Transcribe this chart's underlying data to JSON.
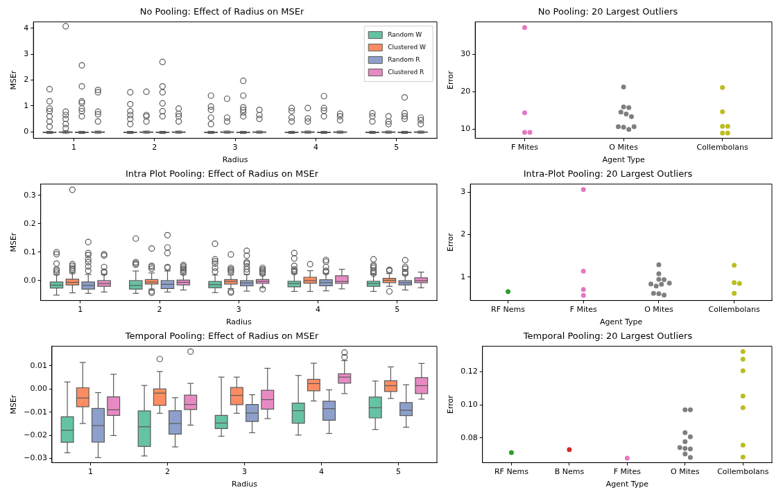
{
  "chart_data": [
    {
      "type": "box",
      "title": "No Pooling: Effect of Radius on MSEr",
      "xlabel": "Radius",
      "ylabel": "MSEr",
      "categories": [
        "1",
        "2",
        "3",
        "4",
        "5"
      ],
      "ylim": [
        -0.25,
        4.25
      ],
      "yticks": [
        0,
        1,
        2,
        3,
        4
      ],
      "legend": "top right",
      "series": [
        {
          "name": "Random W",
          "color": "#66c2a5",
          "boxes": [
            {
              "low": -0.06,
              "q1": -0.03,
              "median": -0.02,
              "q3": -0.01,
              "high": 0.02,
              "outliers": [
                1.65,
                1.18,
                0.9,
                0.8,
                0.6,
                0.4,
                0.2
              ]
            },
            {
              "low": -0.06,
              "q1": -0.03,
              "median": -0.02,
              "q3": -0.01,
              "high": 0.02,
              "outliers": [
                1.53,
                1.07,
                0.8,
                0.65,
                0.5,
                0.3
              ]
            },
            {
              "low": -0.06,
              "q1": -0.03,
              "median": -0.02,
              "q3": -0.01,
              "high": 0.02,
              "outliers": [
                1.4,
                0.98,
                0.85,
                0.55,
                0.3
              ]
            },
            {
              "low": -0.06,
              "q1": -0.03,
              "median": -0.02,
              "q3": -0.01,
              "high": 0.02,
              "outliers": [
                0.92,
                0.8,
                0.55,
                0.4
              ]
            },
            {
              "low": -0.06,
              "q1": -0.03,
              "median": -0.02,
              "q3": -0.01,
              "high": 0.02,
              "outliers": [
                0.72,
                0.6,
                0.4
              ]
            }
          ]
        },
        {
          "name": "Clustered W",
          "color": "#fc8d62",
          "boxes": [
            {
              "low": -0.05,
              "q1": -0.02,
              "median": -0.01,
              "q3": 0.0,
              "high": 0.03,
              "outliers": [
                4.08,
                0.78,
                0.65,
                0.5,
                0.3,
                0.15
              ]
            },
            {
              "low": -0.05,
              "q1": -0.02,
              "median": -0.01,
              "q3": 0.0,
              "high": 0.03,
              "outliers": [
                1.55,
                0.65,
                0.6,
                0.4
              ]
            },
            {
              "low": -0.05,
              "q1": -0.02,
              "median": -0.01,
              "q3": 0.0,
              "high": 0.03,
              "outliers": [
                1.28,
                0.55,
                0.4
              ]
            },
            {
              "low": -0.05,
              "q1": -0.02,
              "median": -0.01,
              "q3": 0.0,
              "high": 0.03,
              "outliers": [
                0.92,
                0.52,
                0.4
              ]
            },
            {
              "low": -0.05,
              "q1": -0.02,
              "median": -0.01,
              "q3": 0.0,
              "high": 0.03,
              "outliers": [
                0.6,
                0.4,
                0.3
              ]
            }
          ]
        },
        {
          "name": "Random R",
          "color": "#8da0cb",
          "boxes": [
            {
              "low": -0.06,
              "q1": -0.03,
              "median": -0.02,
              "q3": -0.01,
              "high": 0.02,
              "outliers": [
                2.57,
                1.76,
                1.18,
                1.12,
                0.9,
                0.8,
                0.6
              ]
            },
            {
              "low": -0.06,
              "q1": -0.03,
              "median": -0.02,
              "q3": -0.01,
              "high": 0.02,
              "outliers": [
                2.7,
                1.76,
                1.53,
                1.1,
                0.8,
                0.6
              ]
            },
            {
              "low": -0.06,
              "q1": -0.03,
              "median": -0.02,
              "q3": -0.01,
              "high": 0.02,
              "outliers": [
                1.97,
                1.4,
                0.95,
                0.85,
                0.75,
                0.6
              ]
            },
            {
              "low": -0.06,
              "q1": -0.03,
              "median": -0.02,
              "q3": -0.01,
              "high": 0.02,
              "outliers": [
                1.38,
                0.92,
                0.82,
                0.6
              ]
            },
            {
              "low": -0.06,
              "q1": -0.03,
              "median": -0.02,
              "q3": -0.01,
              "high": 0.02,
              "outliers": [
                1.33,
                0.72,
                0.6,
                0.5
              ]
            }
          ]
        },
        {
          "name": "Clustered R",
          "color": "#e78ac3",
          "boxes": [
            {
              "low": -0.05,
              "q1": -0.02,
              "median": -0.01,
              "q3": 0.0,
              "high": 0.03,
              "outliers": [
                1.62,
                1.53,
                0.78,
                0.68,
                0.4
              ]
            },
            {
              "low": -0.05,
              "q1": -0.02,
              "median": -0.01,
              "q3": 0.0,
              "high": 0.03,
              "outliers": [
                0.9,
                0.7,
                0.6,
                0.4
              ]
            },
            {
              "low": -0.05,
              "q1": -0.02,
              "median": -0.01,
              "q3": 0.0,
              "high": 0.03,
              "outliers": [
                0.85,
                0.65,
                0.5
              ]
            },
            {
              "low": -0.05,
              "q1": -0.02,
              "median": -0.01,
              "q3": 0.0,
              "high": 0.03,
              "outliers": [
                0.7,
                0.6,
                0.45
              ]
            },
            {
              "low": -0.05,
              "q1": -0.02,
              "median": -0.01,
              "q3": 0.0,
              "high": 0.03,
              "outliers": [
                0.55,
                0.45,
                0.3
              ]
            }
          ]
        }
      ]
    },
    {
      "type": "scatter",
      "title": "No Pooling: 20 Largest Outliers",
      "xlabel": "Agent Type",
      "ylabel": "Error",
      "categories": [
        "F Mites",
        "O Mites",
        "Collembolans"
      ],
      "ylim": [
        7.5,
        38.6
      ],
      "yticks": [
        10,
        20,
        30
      ],
      "marker": "circle",
      "series": [
        {
          "color": "#e377c2",
          "x": [
            "F Mites",
            "F Mites",
            "F Mites",
            "F Mites"
          ],
          "values": [
            37.1,
            14.3,
            9.1,
            9.1
          ]
        },
        {
          "color": "#7f7f7f",
          "x": [
            "O Mites",
            "O Mites",
            "O Mites",
            "O Mites",
            "O Mites",
            "O Mites",
            "O Mites",
            "O Mites",
            "O Mites",
            "O Mites"
          ],
          "values": [
            21.2,
            15.9,
            15.7,
            14.5,
            14.0,
            13.3,
            10.5,
            9.9,
            10.6,
            10.6
          ]
        },
        {
          "color": "#bcbd22",
          "x": [
            "Collembolans",
            "Collembolans",
            "Collembolans",
            "Collembolans",
            "Collembolans",
            "Collembolans"
          ],
          "values": [
            21.1,
            14.6,
            10.7,
            10.7,
            8.9,
            8.9
          ]
        }
      ]
    },
    {
      "type": "box",
      "title": "Intra Plot Pooling: Effect of Radius on MSEr",
      "xlabel": "Radius",
      "ylabel": "MSEr",
      "categories": [
        "1",
        "2",
        "3",
        "4",
        "5"
      ],
      "ylim": [
        -0.07,
        0.34
      ],
      "yticks": [
        {
          "value": 0,
          "label": "0.0"
        },
        {
          "value": 0.1,
          "label": "0.1"
        },
        {
          "value": 0.2,
          "label": "0.2"
        },
        {
          "value": 0.3,
          "label": "0.3"
        }
      ],
      "series": [
        {
          "color": "#66c2a5",
          "boxes": [
            {
              "low": -0.051,
              "q1": -0.026,
              "median": -0.016,
              "q3": -0.005,
              "high": 0.021,
              "outliers": [
                0.1,
                0.093,
                0.06,
                0.04,
                0.035,
                0.028
              ]
            },
            {
              "low": -0.045,
              "q1": -0.03,
              "median": -0.017,
              "q3": 0.0,
              "high": 0.034,
              "outliers": [
                0.148,
                0.065,
                0.06,
                0.056
              ]
            },
            {
              "low": -0.042,
              "q1": -0.025,
              "median": -0.014,
              "q3": -0.003,
              "high": 0.02,
              "outliers": [
                0.13,
                0.075,
                0.068,
                0.06,
                0.045,
                0.032
              ]
            },
            {
              "low": -0.038,
              "q1": -0.022,
              "median": -0.01,
              "q3": -0.002,
              "high": 0.025,
              "outliers": [
                0.097,
                0.078,
                0.052,
                0.04,
                0.035,
                0.03
              ]
            },
            {
              "low": -0.038,
              "q1": -0.02,
              "median": -0.01,
              "q3": -0.002,
              "high": 0.022,
              "outliers": [
                0.075,
                0.055,
                0.05,
                0.045,
                0.035,
                0.03,
                0.025
              ]
            }
          ]
        },
        {
          "color": "#fc8d62",
          "boxes": [
            {
              "low": -0.043,
              "q1": -0.015,
              "median": -0.006,
              "q3": 0.005,
              "high": 0.027,
              "outliers": [
                0.32,
                0.058,
                0.052,
                0.045,
                0.04,
                0.033
              ]
            },
            {
              "low": -0.03,
              "q1": -0.012,
              "median": -0.005,
              "q3": 0.004,
              "high": 0.027,
              "outliers": [
                0.113,
                0.052,
                0.048,
                0.042,
                -0.038,
                -0.043
              ]
            },
            {
              "low": -0.028,
              "q1": -0.012,
              "median": -0.003,
              "q3": 0.004,
              "high": 0.02,
              "outliers": [
                0.092,
                0.045,
                0.04,
                0.035,
                0.03,
                -0.038,
                -0.042
              ]
            },
            {
              "low": -0.038,
              "q1": -0.009,
              "median": 0.0,
              "q3": 0.012,
              "high": 0.035,
              "outliers": [
                0.058
              ]
            },
            {
              "low": -0.02,
              "q1": -0.007,
              "median": 0.001,
              "q3": 0.008,
              "high": 0.025,
              "outliers": [
                0.038,
                0.035,
                -0.038
              ]
            }
          ]
        },
        {
          "color": "#8da0cb",
          "boxes": [
            {
              "low": -0.045,
              "q1": -0.03,
              "median": -0.017,
              "q3": -0.005,
              "high": 0.022,
              "outliers": [
                0.136,
                0.097,
                0.09,
                0.075,
                0.065,
                0.05,
                0.035
              ]
            },
            {
              "low": -0.04,
              "q1": -0.028,
              "median": -0.013,
              "q3": 0.0,
              "high": 0.034,
              "outliers": [
                0.16,
                0.117,
                0.097,
                0.048,
                0.045
              ]
            },
            {
              "low": -0.037,
              "q1": -0.018,
              "median": -0.008,
              "q3": 0.0,
              "high": 0.022,
              "outliers": [
                0.105,
                0.088,
                0.065,
                0.06,
                0.05,
                0.04,
                0.03
              ]
            },
            {
              "low": -0.036,
              "q1": -0.018,
              "median": -0.007,
              "q3": 0.003,
              "high": 0.025,
              "outliers": [
                0.073,
                0.067,
                0.048,
                0.035,
                0.03
              ]
            },
            {
              "low": -0.033,
              "q1": -0.015,
              "median": -0.007,
              "q3": 0.0,
              "high": 0.02,
              "outliers": [
                0.072,
                0.048,
                0.042,
                0.03,
                0.025
              ]
            }
          ]
        },
        {
          "color": "#e78ac3",
          "boxes": [
            {
              "low": -0.04,
              "q1": -0.02,
              "median": -0.01,
              "q3": 0.0,
              "high": 0.022,
              "outliers": [
                0.093,
                0.088,
                0.048,
                0.032,
                0.028
              ]
            },
            {
              "low": -0.033,
              "q1": -0.015,
              "median": -0.006,
              "q3": 0.002,
              "high": 0.022,
              "outliers": [
                0.055,
                0.05,
                0.045,
                0.04,
                0.035,
                0.028
              ]
            },
            {
              "low": -0.025,
              "q1": -0.01,
              "median": -0.003,
              "q3": 0.004,
              "high": 0.02,
              "outliers": [
                0.045,
                0.04,
                0.035,
                0.03,
                0.025,
                -0.03
              ]
            },
            {
              "low": -0.029,
              "q1": -0.01,
              "median": -0.003,
              "q3": 0.017,
              "high": 0.04
            },
            {
              "low": -0.025,
              "q1": -0.007,
              "median": 0.0,
              "q3": 0.01,
              "high": 0.03
            }
          ]
        }
      ]
    },
    {
      "type": "scatter",
      "title": "Intra-Plot Pooling: 20 Largest Outliers",
      "xlabel": "Agent Type",
      "ylabel": "Error",
      "categories": [
        "RF Nems",
        "F Mites",
        "O Mites",
        "Collembolans"
      ],
      "ylim": [
        0.45,
        3.19
      ],
      "yticks": [
        1,
        2,
        3
      ],
      "marker": "circle",
      "series": [
        {
          "color": "#2ca02c",
          "x": [
            "RF Nems"
          ],
          "values": [
            0.66
          ]
        },
        {
          "color": "#e377c2",
          "x": [
            "F Mites",
            "F Mites",
            "F Mites",
            "F Mites"
          ],
          "values": [
            3.06,
            1.14,
            0.71,
            0.57
          ]
        },
        {
          "color": "#7f7f7f",
          "x": [
            "O Mites",
            "O Mites",
            "O Mites",
            "O Mites",
            "O Mites",
            "O Mites",
            "O Mites",
            "O Mites",
            "O Mites",
            "O Mites",
            "O Mites"
          ],
          "values": [
            1.29,
            1.08,
            0.95,
            0.94,
            0.83,
            0.79,
            0.84,
            0.86,
            0.61,
            0.58,
            0.62
          ]
        },
        {
          "color": "#bcbd22",
          "x": [
            "Collembolans",
            "Collembolans",
            "Collembolans",
            "Collembolans"
          ],
          "values": [
            1.28,
            0.87,
            0.85,
            0.62
          ]
        }
      ]
    },
    {
      "type": "box",
      "title": "Temporal Pooling: Effect of Radius on MSEr",
      "xlabel": "Radius",
      "ylabel": "MSEr",
      "categories": [
        "1",
        "2",
        "3",
        "4",
        "5"
      ],
      "ylim": [
        -0.0318,
        0.0184
      ],
      "yticks": [
        {
          "value": -0.03,
          "label": "−0.03"
        },
        {
          "value": -0.02,
          "label": "−0.02"
        },
        {
          "value": -0.01,
          "label": "−0.01"
        },
        {
          "value": 0,
          "label": "0.00"
        },
        {
          "value": 0.01,
          "label": "0.01"
        }
      ],
      "series": [
        {
          "color": "#66c2a5",
          "boxes": [
            {
              "low": -0.0275,
              "q1": -0.023,
              "median": -0.0178,
              "q3": -0.012,
              "high": 0.003
            },
            {
              "low": -0.0289,
              "q1": -0.0248,
              "median": -0.0163,
              "q3": -0.0095,
              "high": 0.0015
            },
            {
              "low": -0.0204,
              "q1": -0.0171,
              "median": -0.0147,
              "q3": -0.0114,
              "high": 0.0051
            },
            {
              "low": -0.0199,
              "q1": -0.0148,
              "median": -0.0094,
              "q3": -0.0061,
              "high": 0.0058
            },
            {
              "low": -0.0175,
              "q1": -0.0125,
              "median": -0.0081,
              "q3": -0.0035,
              "high": 0.0034
            }
          ]
        },
        {
          "color": "#fc8d62",
          "boxes": [
            {
              "low": -0.0149,
              "q1": -0.0077,
              "median": -0.0039,
              "q3": 0.0005,
              "high": 0.0114
            },
            {
              "low": -0.0105,
              "q1": -0.0071,
              "median": -0.0018,
              "q3": 0.0,
              "high": 0.0075,
              "outliers": [
                0.0129
              ]
            },
            {
              "low": -0.0105,
              "q1": -0.0068,
              "median": -0.0028,
              "q3": 0.0006,
              "high": 0.0051
            },
            {
              "low": -0.0052,
              "q1": -0.0008,
              "median": 0.0023,
              "q3": 0.0041,
              "high": 0.0111
            },
            {
              "low": -0.0041,
              "q1": -0.0011,
              "median": 0.0014,
              "q3": 0.0035,
              "high": 0.0095
            }
          ]
        },
        {
          "color": "#8da0cb",
          "boxes": [
            {
              "low": -0.0296,
              "q1": -0.0229,
              "median": -0.0158,
              "q3": -0.0084,
              "high": -0.0016
            },
            {
              "low": -0.025,
              "q1": -0.0195,
              "median": -0.0149,
              "q3": -0.0094,
              "high": -0.0038
            },
            {
              "low": -0.0189,
              "q1": -0.014,
              "median": -0.0104,
              "q3": -0.0067,
              "high": -0.0025
            },
            {
              "low": -0.0192,
              "q1": -0.0135,
              "median": -0.0085,
              "q3": -0.0053,
              "high": -0.0004
            },
            {
              "low": -0.0165,
              "q1": -0.0115,
              "median": -0.0092,
              "q3": -0.0059,
              "high": 0.0018
            }
          ]
        },
        {
          "color": "#e78ac3",
          "boxes": [
            {
              "low": -0.0201,
              "q1": -0.0114,
              "median": -0.009,
              "q3": -0.0034,
              "high": 0.0063
            },
            {
              "low": -0.0156,
              "q1": -0.0089,
              "median": -0.0067,
              "q3": -0.0027,
              "high": 0.0024,
              "outliers": [
                0.0161
              ]
            },
            {
              "low": -0.0128,
              "q1": -0.0087,
              "median": -0.0046,
              "q3": -0.0006,
              "high": 0.0089
            },
            {
              "low": -0.002,
              "q1": 0.0025,
              "median": 0.0051,
              "q3": 0.0065,
              "high": 0.0122,
              "outliers": [
                0.0157,
                0.0137
              ]
            },
            {
              "low": -0.0044,
              "q1": -0.002,
              "median": 0.0014,
              "q3": 0.0049,
              "high": 0.011
            }
          ]
        }
      ]
    },
    {
      "type": "scatter",
      "title": "Temporal Pooling: 20 Largest Outliers",
      "xlabel": "Agent Type",
      "ylabel": "Error",
      "categories": [
        "RF Nems",
        "B Nems",
        "F Mites",
        "O Mites",
        "Collembolans"
      ],
      "ylim": [
        0.065,
        0.1354
      ],
      "yticks": [
        {
          "value": 0.08,
          "label": "0.08"
        },
        {
          "value": 0.1,
          "label": "0.10"
        },
        {
          "value": 0.12,
          "label": "0.12"
        }
      ],
      "marker": "circle",
      "series": [
        {
          "color": "#2ca02c",
          "x": [
            "RF Nems"
          ],
          "values": [
            0.0711
          ]
        },
        {
          "color": "#d62728",
          "x": [
            "B Nems"
          ],
          "values": [
            0.0729
          ]
        },
        {
          "color": "#e377c2",
          "x": [
            "F Mites"
          ],
          "values": [
            0.0678
          ]
        },
        {
          "color": "#7f7f7f",
          "x": [
            "O Mites",
            "O Mites",
            "O Mites",
            "O Mites",
            "O Mites",
            "O Mites",
            "O Mites",
            "O Mites",
            "O Mites",
            "O Mites"
          ],
          "values": [
            0.097,
            0.097,
            0.0832,
            0.0807,
            0.0777,
            0.0736,
            0.0733,
            0.0742,
            0.0703,
            0.0682
          ]
        },
        {
          "color": "#bcbd22",
          "x": [
            "Collembolans",
            "Collembolans",
            "Collembolans",
            "Collembolans",
            "Collembolans",
            "Collembolans",
            "Collembolans"
          ],
          "values": [
            0.1322,
            0.1276,
            0.1206,
            0.1053,
            0.0982,
            0.0756,
            0.0684
          ]
        }
      ]
    }
  ]
}
